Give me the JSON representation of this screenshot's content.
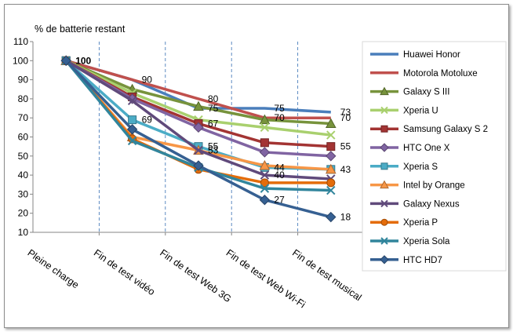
{
  "chart_data": {
    "type": "line",
    "ylabel": "% de batterie restant",
    "ylim": [
      10,
      110
    ],
    "yticks": [
      "10",
      "20",
      "30",
      "40",
      "50",
      "60",
      "70",
      "80",
      "90",
      "100",
      "110"
    ],
    "categories": [
      "Pleine charge",
      "Fin de test  vidéo",
      "Fin de test  Web 3G",
      "Fin de test  Web Wi-Fi",
      "Fin de test  musical"
    ],
    "grid": "vertical-dashed",
    "legend_position": "right",
    "series": [
      {
        "name": "Huawei Honor",
        "color": "#4a7ebb",
        "marker": "none",
        "values": [
          100,
          90,
          75,
          75,
          73
        ]
      },
      {
        "name": "Motorola Motoluxe",
        "color": "#c0504d",
        "marker": "none",
        "values": [
          100,
          90,
          80,
          70,
          70
        ]
      },
      {
        "name": "Galaxy S III",
        "color": "#77933c",
        "marker": "triangle",
        "values": [
          100,
          85,
          76,
          69,
          67
        ]
      },
      {
        "name": "Xperia U",
        "color": "#a9d06e",
        "marker": "x",
        "values": [
          100,
          83,
          69,
          65,
          61
        ]
      },
      {
        "name": "Samsung Galaxy S 2",
        "color": "#a33433",
        "marker": "square",
        "values": [
          100,
          81,
          67,
          57,
          55
        ]
      },
      {
        "name": "HTC One X",
        "color": "#8064a2",
        "marker": "diamond",
        "values": [
          100,
          80,
          65,
          52,
          50
        ]
      },
      {
        "name": "Xperia S",
        "color": "#4bacc6",
        "marker": "square",
        "values": [
          100,
          69,
          55,
          44,
          43
        ]
      },
      {
        "name": "Intel by Orange",
        "color": "#f79646",
        "marker": "triangle",
        "values": [
          100,
          60,
          53,
          45,
          43
        ]
      },
      {
        "name": "Galaxy Nexus",
        "color": "#604a7b",
        "marker": "x",
        "values": [
          100,
          79,
          53,
          40,
          38
        ]
      },
      {
        "name": "Xperia P",
        "color": "#e46c0a",
        "marker": "circle",
        "values": [
          100,
          59,
          43,
          36,
          36
        ]
      },
      {
        "name": "Xperia Sola",
        "color": "#31859c",
        "marker": "x",
        "values": [
          100,
          58,
          44,
          33,
          32
        ]
      },
      {
        "name": "HTC HD7",
        "color": "#366092",
        "marker": "diamond",
        "values": [
          100,
          64,
          45,
          27,
          18
        ]
      }
    ],
    "data_labels": [
      {
        "category": "Pleine charge",
        "value": 100,
        "text": "100"
      },
      {
        "category": "Fin de test  vidéo",
        "value": 90,
        "text": "90"
      },
      {
        "category": "Fin de test  vidéo",
        "value": 69,
        "text": "69"
      },
      {
        "category": "Fin de test  Web 3G",
        "value": 80,
        "text": "80"
      },
      {
        "category": "Fin de test  Web 3G",
        "value": 75,
        "text": "75"
      },
      {
        "category": "Fin de test  Web 3G",
        "value": 67,
        "text": "67"
      },
      {
        "category": "Fin de test  Web 3G",
        "value": 55,
        "text": "55"
      },
      {
        "category": "Fin de test  Web 3G",
        "value": 53,
        "text": "53"
      },
      {
        "category": "Fin de test  Web Wi-Fi",
        "value": 75,
        "text": "75"
      },
      {
        "category": "Fin de test  Web Wi-Fi",
        "value": 70,
        "text": "70"
      },
      {
        "category": "Fin de test  Web Wi-Fi",
        "value": 44,
        "text": "44"
      },
      {
        "category": "Fin de test  Web Wi-Fi",
        "value": 40,
        "text": "40"
      },
      {
        "category": "Fin de test  Web Wi-Fi",
        "value": 27,
        "text": "27"
      },
      {
        "category": "Fin de test  musical",
        "value": 73,
        "text": "73"
      },
      {
        "category": "Fin de test  musical",
        "value": 70,
        "text": "70"
      },
      {
        "category": "Fin de test  musical",
        "value": 55,
        "text": "55"
      },
      {
        "category": "Fin de test  musical",
        "value": 43,
        "text": "43"
      },
      {
        "category": "Fin de test  musical",
        "value": 18,
        "text": "18"
      }
    ]
  }
}
